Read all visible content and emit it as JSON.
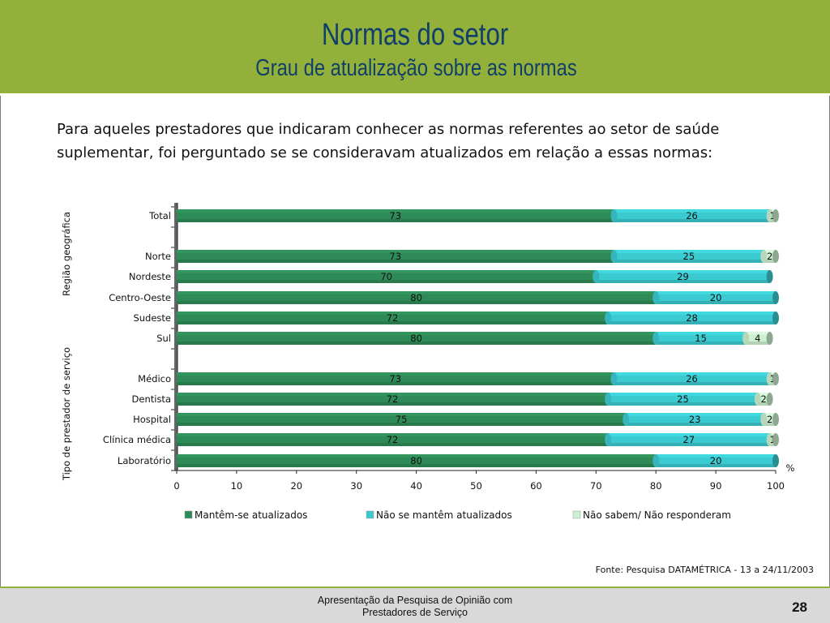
{
  "header": {
    "title": "Normas do setor",
    "subtitle": "Grau de atualização sobre as normas"
  },
  "intro_text": "Para aqueles prestadores que indicaram conhecer as normas referentes ao setor de saúde suplementar, foi perguntado se se consideravam atualizados em relação a essas normas:",
  "source": "Fonte: Pesquisa DATAMÉTRICA - 13 a 24/11/2003",
  "footer": {
    "line1": "Apresentação da Pesquisa de Opinião com",
    "line2": "Prestadores de Serviço",
    "page_number": "28"
  },
  "colors": {
    "header_bg": "#93b03a",
    "title": "#10406a",
    "series1": "#2e8b57",
    "series2": "#3ccad1",
    "series3": "#cbefcf"
  },
  "chart_data": {
    "type": "bar",
    "orientation": "horizontal",
    "stacked": true,
    "xlim": [
      0,
      100
    ],
    "xticks": [
      "0",
      "10",
      "20",
      "30",
      "40",
      "50",
      "60",
      "70",
      "80",
      "90",
      "100"
    ],
    "x_unit": "%",
    "legend_position": "bottom",
    "group_labels": [
      "Região geográfica",
      "Tipo de prestador de serviço"
    ],
    "series": [
      {
        "name": "Mantêm-se atualizados",
        "color": "#2e8b57"
      },
      {
        "name": "Não se mantêm atualizados",
        "color": "#3ccad1"
      },
      {
        "name": "Não sabem/ Não responderam",
        "color": "#cbefcf"
      }
    ],
    "rows": [
      {
        "category": "Total",
        "values": [
          73,
          26,
          1
        ]
      },
      {
        "category": "Norte",
        "values": [
          73,
          25,
          2
        ]
      },
      {
        "category": "Nordeste",
        "values": [
          70,
          29,
          null
        ]
      },
      {
        "category": "Centro-Oeste",
        "values": [
          80,
          20,
          null
        ]
      },
      {
        "category": "Sudeste",
        "values": [
          72,
          28,
          null
        ]
      },
      {
        "category": "Sul",
        "values": [
          80,
          15,
          4
        ]
      },
      {
        "category": "Médico",
        "values": [
          73,
          26,
          1
        ]
      },
      {
        "category": "Dentista",
        "values": [
          72,
          25,
          2
        ]
      },
      {
        "category": "Hospital",
        "values": [
          75,
          23,
          2
        ]
      },
      {
        "category": "Clínica médica",
        "values": [
          72,
          27,
          1
        ]
      },
      {
        "category": "Laboratório",
        "values": [
          80,
          20,
          null
        ]
      }
    ]
  }
}
